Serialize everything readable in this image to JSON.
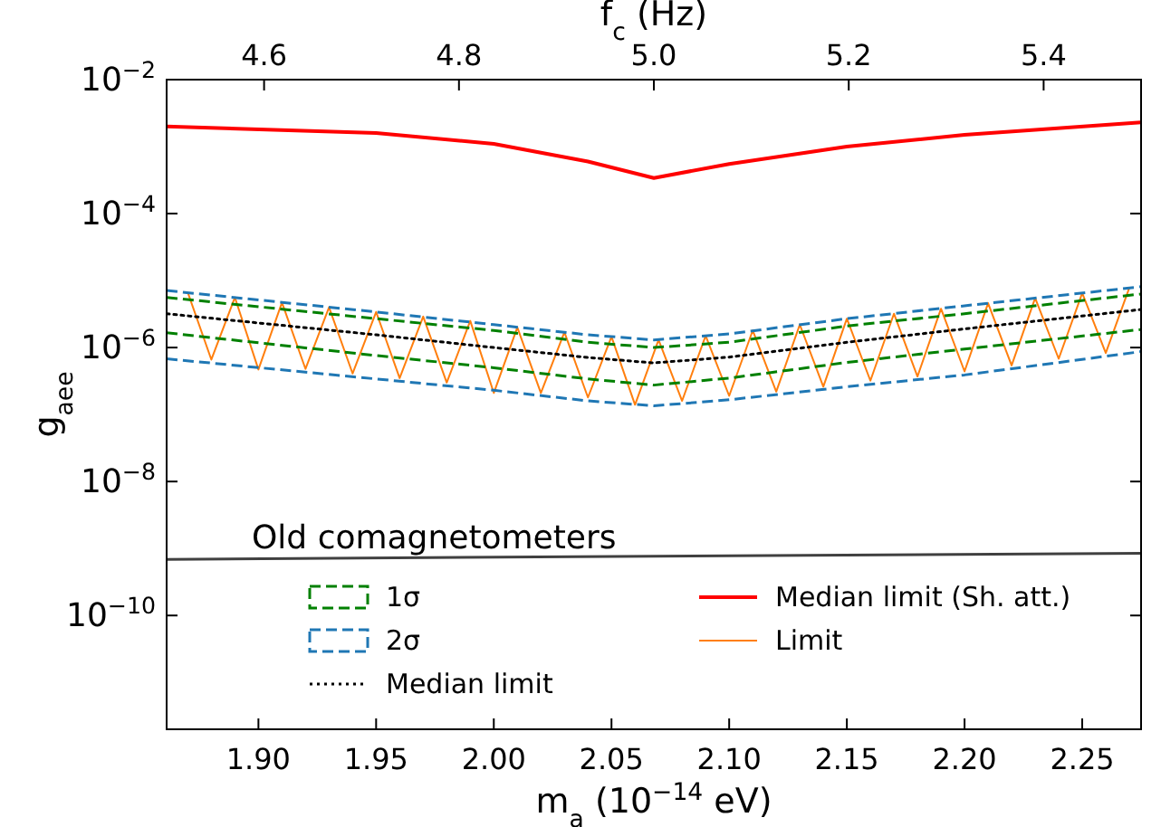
{
  "chart_data": {
    "type": "line",
    "xlabel": "m$_{a}$ (10$^{−14}$ eV)",
    "ylabel": "g$_{aee}$",
    "x2label": "f$_{c}$ (Hz)",
    "log": "y",
    "grid": false,
    "legend": "bottom",
    "xlim": [
      1.861,
      2.275
    ],
    "xticks": [
      {
        "value": 1.9,
        "label": "1.90"
      },
      1.95,
      {
        "value": 2.0,
        "label": "2.00"
      },
      2.05,
      {
        "value": 2.1,
        "label": "2.10"
      },
      2.15,
      {
        "value": 2.2,
        "label": "2.20"
      },
      2.25
    ],
    "x2lim": [
      4.5,
      5.5
    ],
    "x2ticks": [
      4.6,
      4.8,
      {
        "value": 5.0,
        "label": "5.0"
      },
      5.2,
      5.4
    ],
    "ylim": [
      2e-12,
      0.01
    ],
    "yticks": [
      {
        "value": 0.01,
        "label": "10$^{−2}$"
      },
      {
        "value": 0.0001,
        "label": "10$^{−4}$"
      },
      {
        "value": 1e-06,
        "label": "10$^{−6}$"
      },
      {
        "value": 1e-08,
        "label": "10$^{−8}$"
      },
      {
        "value": 1e-10,
        "label": "10$^{−10}$"
      }
    ],
    "annotations": [
      "Old comagnetometers"
    ],
    "series": [
      {
        "name": "1σ",
        "color": "#008000",
        "line_style": "dashed",
        "x": [
          1.861,
          1.95,
          2.0,
          2.04,
          2.068,
          2.1,
          2.15,
          2.2,
          2.275
        ],
        "values": [
          5.6e-06,
          2.7e-06,
          1.8e-06,
          1.2e-06,
          1e-06,
          1.2e-06,
          2.1e-06,
          3.2e-06,
          6.3e-06
        ]
      },
      {
        "color": "#008000",
        "line_style": "dashed",
        "x": [
          1.861,
          1.95,
          2.0,
          2.04,
          2.068,
          2.1,
          2.15,
          2.2,
          2.275
        ],
        "values": [
          1.66e-06,
          7.6e-07,
          5e-07,
          3.4e-07,
          2.75e-07,
          3.5e-07,
          6e-07,
          9.5e-07,
          1.86e-06
        ]
      },
      {
        "name": "2σ",
        "color": "#1f77b4",
        "line_style": "dashed",
        "x": [
          1.861,
          1.95,
          2.0,
          2.04,
          2.068,
          2.1,
          2.15,
          2.2,
          2.275
        ],
        "values": [
          7.1e-06,
          3.4e-06,
          2.2e-06,
          1.55e-06,
          1.3e-06,
          1.6e-06,
          2.7e-06,
          4.2e-06,
          8.1e-06
        ]
      },
      {
        "color": "#1f77b4",
        "line_style": "dashed",
        "x": [
          1.861,
          1.95,
          2.0,
          2.04,
          2.068,
          2.1,
          2.15,
          2.2,
          2.275
        ],
        "values": [
          6.8e-07,
          3.4e-07,
          2.3e-07,
          1.6e-07,
          1.35e-07,
          1.66e-07,
          2.6e-07,
          3.9e-07,
          8.7e-07
        ]
      },
      {
        "name": "Median limit",
        "color": "#000000",
        "line_style": "dotted",
        "x": [
          1.861,
          1.95,
          2.0,
          2.04,
          2.068,
          2.1,
          2.15,
          2.2,
          2.275
        ],
        "values": [
          3.2e-06,
          1.55e-06,
          1e-06,
          7.1e-07,
          5.9e-07,
          7.2e-07,
          1.2e-06,
          1.9e-06,
          3.7e-06
        ]
      },
      {
        "name": "Median limit (Sh. att.)",
        "color": "#ff0000",
        "line_style": "solid",
        "x": [
          1.861,
          1.95,
          2.0,
          2.04,
          2.068,
          2.1,
          2.15,
          2.2,
          2.275
        ],
        "values": [
          0.002,
          0.0016,
          0.0011,
          0.0006,
          0.00034,
          0.00055,
          0.001,
          0.0015,
          0.0023
        ]
      },
      {
        "name": "Limit",
        "color": "#ff7f0e",
        "line_style": "solid",
        "x": [
          1.87,
          1.88,
          1.89,
          1.9,
          1.91,
          1.92,
          1.93,
          1.94,
          1.95,
          1.96,
          1.97,
          1.98,
          1.99,
          2.0,
          2.01,
          2.02,
          2.03,
          2.04,
          2.05,
          2.06,
          2.07,
          2.08,
          2.09,
          2.1,
          2.11,
          2.12,
          2.13,
          2.14,
          2.15,
          2.16,
          2.17,
          2.18,
          2.19,
          2.2,
          2.21,
          2.22,
          2.23,
          2.24,
          2.25,
          2.26,
          2.27
        ],
        "values": [
          6.6e-06,
          6.6e-07,
          5.6e-06,
          4.7e-07,
          4.7e-06,
          4.8e-07,
          4e-06,
          4.1e-07,
          3.4e-06,
          3.5e-07,
          2.9e-06,
          3e-07,
          2.5e-06,
          2.1e-07,
          2e-06,
          2.1e-07,
          1.7e-06,
          1.8e-07,
          1.45e-06,
          1.4e-07,
          1.3e-06,
          1.6e-07,
          1.5e-06,
          1.9e-07,
          1.8e-06,
          2.2e-07,
          2.2e-06,
          2.6e-07,
          2.7e-06,
          3.2e-07,
          3.2e-06,
          3.7e-07,
          3.8e-06,
          4.4e-07,
          4.6e-06,
          5.4e-07,
          5.5e-06,
          6.8e-07,
          6.5e-06,
          8.3e-07,
          7.8e-06
        ]
      },
      {
        "color": "#404040",
        "line_style": "solid",
        "x": [
          1.861,
          2.275
        ],
        "values": [
          6.9e-10,
          8.5e-10
        ]
      }
    ]
  }
}
